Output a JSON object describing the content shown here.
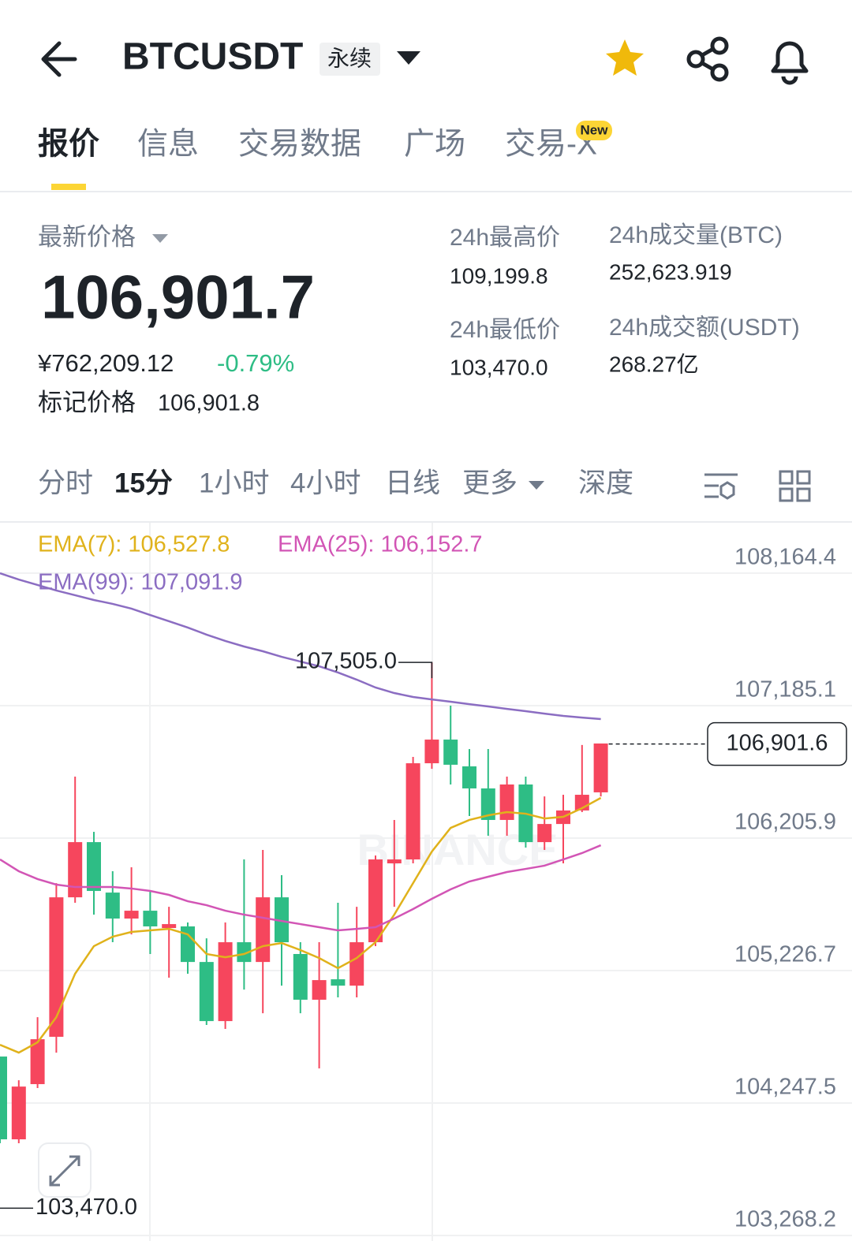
{
  "header": {
    "title": "BTCUSDT",
    "tag": "永续"
  },
  "tabs": [
    "报价",
    "信息",
    "交易数据",
    "广场",
    "交易-X"
  ],
  "new_badge": "New",
  "price": {
    "label": "最新价格",
    "last": "106,901.7",
    "cny": "¥762,209.12",
    "change": "-0.79%",
    "mark_label": "标记价格",
    "mark": "106,901.8"
  },
  "stats": [
    {
      "label": "24h最高价",
      "value": "109,199.8"
    },
    {
      "label": "24h最低价",
      "value": "103,470.0"
    },
    {
      "label": "24h成交量(BTC)",
      "value": "252,623.919"
    },
    {
      "label": "24h成交额(USDT)",
      "value": "268.27亿"
    }
  ],
  "intervals": [
    "分时",
    "15分",
    "1小时",
    "4小时",
    "日线",
    "更多",
    "深度"
  ],
  "chart_data": {
    "type": "candlestick",
    "watermark": "BINANCE",
    "up_color": "#f6465d",
    "down_color": "#2ebd85",
    "ylim": [
      103268.2,
      108537
    ],
    "yticks": [
      {
        "value": 108164.4,
        "label": "108,164.4"
      },
      {
        "value": 107185.1,
        "label": "107,185.1"
      },
      {
        "value": 106205.9,
        "label": "106,205.9"
      },
      {
        "value": 105226.7,
        "label": "105,226.7"
      },
      {
        "value": 104247.5,
        "label": "104,247.5"
      },
      {
        "value": 103268.2,
        "label": "103,268.2"
      }
    ],
    "grid": true,
    "high_marker": {
      "value": 107505.0,
      "label": "107,505.0"
    },
    "low_marker": {
      "value": 103470.0,
      "label": "103,470.0"
    },
    "last_price": {
      "value": 106901.6,
      "label": "106,901.6"
    },
    "candles": [
      {
        "o": 104591,
        "h": 104591,
        "l": 103950,
        "c": 103979
      },
      {
        "o": 103979,
        "h": 104416,
        "l": 103950,
        "c": 104369
      },
      {
        "o": 104387,
        "h": 104882,
        "l": 104358,
        "c": 104719
      },
      {
        "o": 104737,
        "h": 105873,
        "l": 104620,
        "c": 105768
      },
      {
        "o": 105768,
        "h": 106660,
        "l": 105728,
        "c": 106176
      },
      {
        "o": 106176,
        "h": 106252,
        "l": 105640,
        "c": 105815
      },
      {
        "o": 105803,
        "h": 105961,
        "l": 105436,
        "c": 105611
      },
      {
        "o": 105611,
        "h": 105990,
        "l": 105494,
        "c": 105669
      },
      {
        "o": 105669,
        "h": 105815,
        "l": 105349,
        "c": 105553
      },
      {
        "o": 105541,
        "h": 105698,
        "l": 105174,
        "c": 105570
      },
      {
        "o": 105553,
        "h": 105582,
        "l": 105203,
        "c": 105290
      },
      {
        "o": 105290,
        "h": 105465,
        "l": 104824,
        "c": 104853
      },
      {
        "o": 104853,
        "h": 105582,
        "l": 104795,
        "c": 105436
      },
      {
        "o": 105436,
        "h": 106048,
        "l": 105086,
        "c": 105290
      },
      {
        "o": 105290,
        "h": 106118,
        "l": 104911,
        "c": 105768
      },
      {
        "o": 105768,
        "h": 105932,
        "l": 105115,
        "c": 105436
      },
      {
        "o": 105349,
        "h": 105436,
        "l": 104911,
        "c": 105011
      },
      {
        "o": 105011,
        "h": 105436,
        "l": 104503,
        "c": 105156
      },
      {
        "o": 105162,
        "h": 105728,
        "l": 105028,
        "c": 105115
      },
      {
        "o": 105115,
        "h": 105698,
        "l": 105028,
        "c": 105436
      },
      {
        "o": 105436,
        "h": 106077,
        "l": 105407,
        "c": 106048
      },
      {
        "o": 106019,
        "h": 106340,
        "l": 105698,
        "c": 106048
      },
      {
        "o": 106048,
        "h": 106806,
        "l": 106019,
        "c": 106759
      },
      {
        "o": 106759,
        "h": 107505,
        "l": 106718,
        "c": 106934
      },
      {
        "o": 106934,
        "h": 107185,
        "l": 106602,
        "c": 106748
      },
      {
        "o": 106736,
        "h": 106864,
        "l": 106369,
        "c": 106573
      },
      {
        "o": 106573,
        "h": 106864,
        "l": 106223,
        "c": 106340
      },
      {
        "o": 106340,
        "h": 106660,
        "l": 106223,
        "c": 106602
      },
      {
        "o": 106602,
        "h": 106660,
        "l": 106136,
        "c": 106176
      },
      {
        "o": 106176,
        "h": 106514,
        "l": 106118,
        "c": 106310
      },
      {
        "o": 106310,
        "h": 106526,
        "l": 106019,
        "c": 106410
      },
      {
        "o": 106410,
        "h": 106894,
        "l": 106398,
        "c": 106526
      },
      {
        "o": 106544,
        "h": 106905,
        "l": 106514,
        "c": 106905
      }
    ],
    "series": [
      {
        "name": "EMA(7): 106,527.8",
        "color": "#e0b21b",
        "values": [
          104678,
          104620,
          104696,
          104882,
          105203,
          105407,
          105477,
          105512,
          105524,
          105535,
          105494,
          105349,
          105325,
          105349,
          105407,
          105430,
          105378,
          105319,
          105244,
          105319,
          105436,
          105640,
          105873,
          106106,
          106281,
          106340,
          106374,
          106398,
          106386,
          106351,
          106363,
          106427,
          106503
        ]
      },
      {
        "name": "EMA(25): 106,152.7",
        "color": "#d255b5",
        "values": [
          106048,
          105961,
          105903,
          105862,
          105844,
          105844,
          105844,
          105833,
          105815,
          105786,
          105739,
          105710,
          105669,
          105640,
          105617,
          105593,
          105570,
          105547,
          105524,
          105535,
          105547,
          105611,
          105681,
          105757,
          105827,
          105885,
          105920,
          105955,
          105978,
          106002,
          106048,
          106095,
          106153
        ]
      },
      {
        "name": "EMA(99): 107,091.9",
        "color": "#8b6dc2",
        "values": [
          108164,
          108117,
          108077,
          108036,
          108001,
          107966,
          107937,
          107902,
          107855,
          107809,
          107762,
          107710,
          107663,
          107622,
          107587,
          107546,
          107511,
          107476,
          107430,
          107377,
          107319,
          107278,
          107249,
          107231,
          107214,
          107196,
          107179,
          107161,
          107144,
          107126,
          107109,
          107097,
          107086
        ]
      }
    ]
  }
}
